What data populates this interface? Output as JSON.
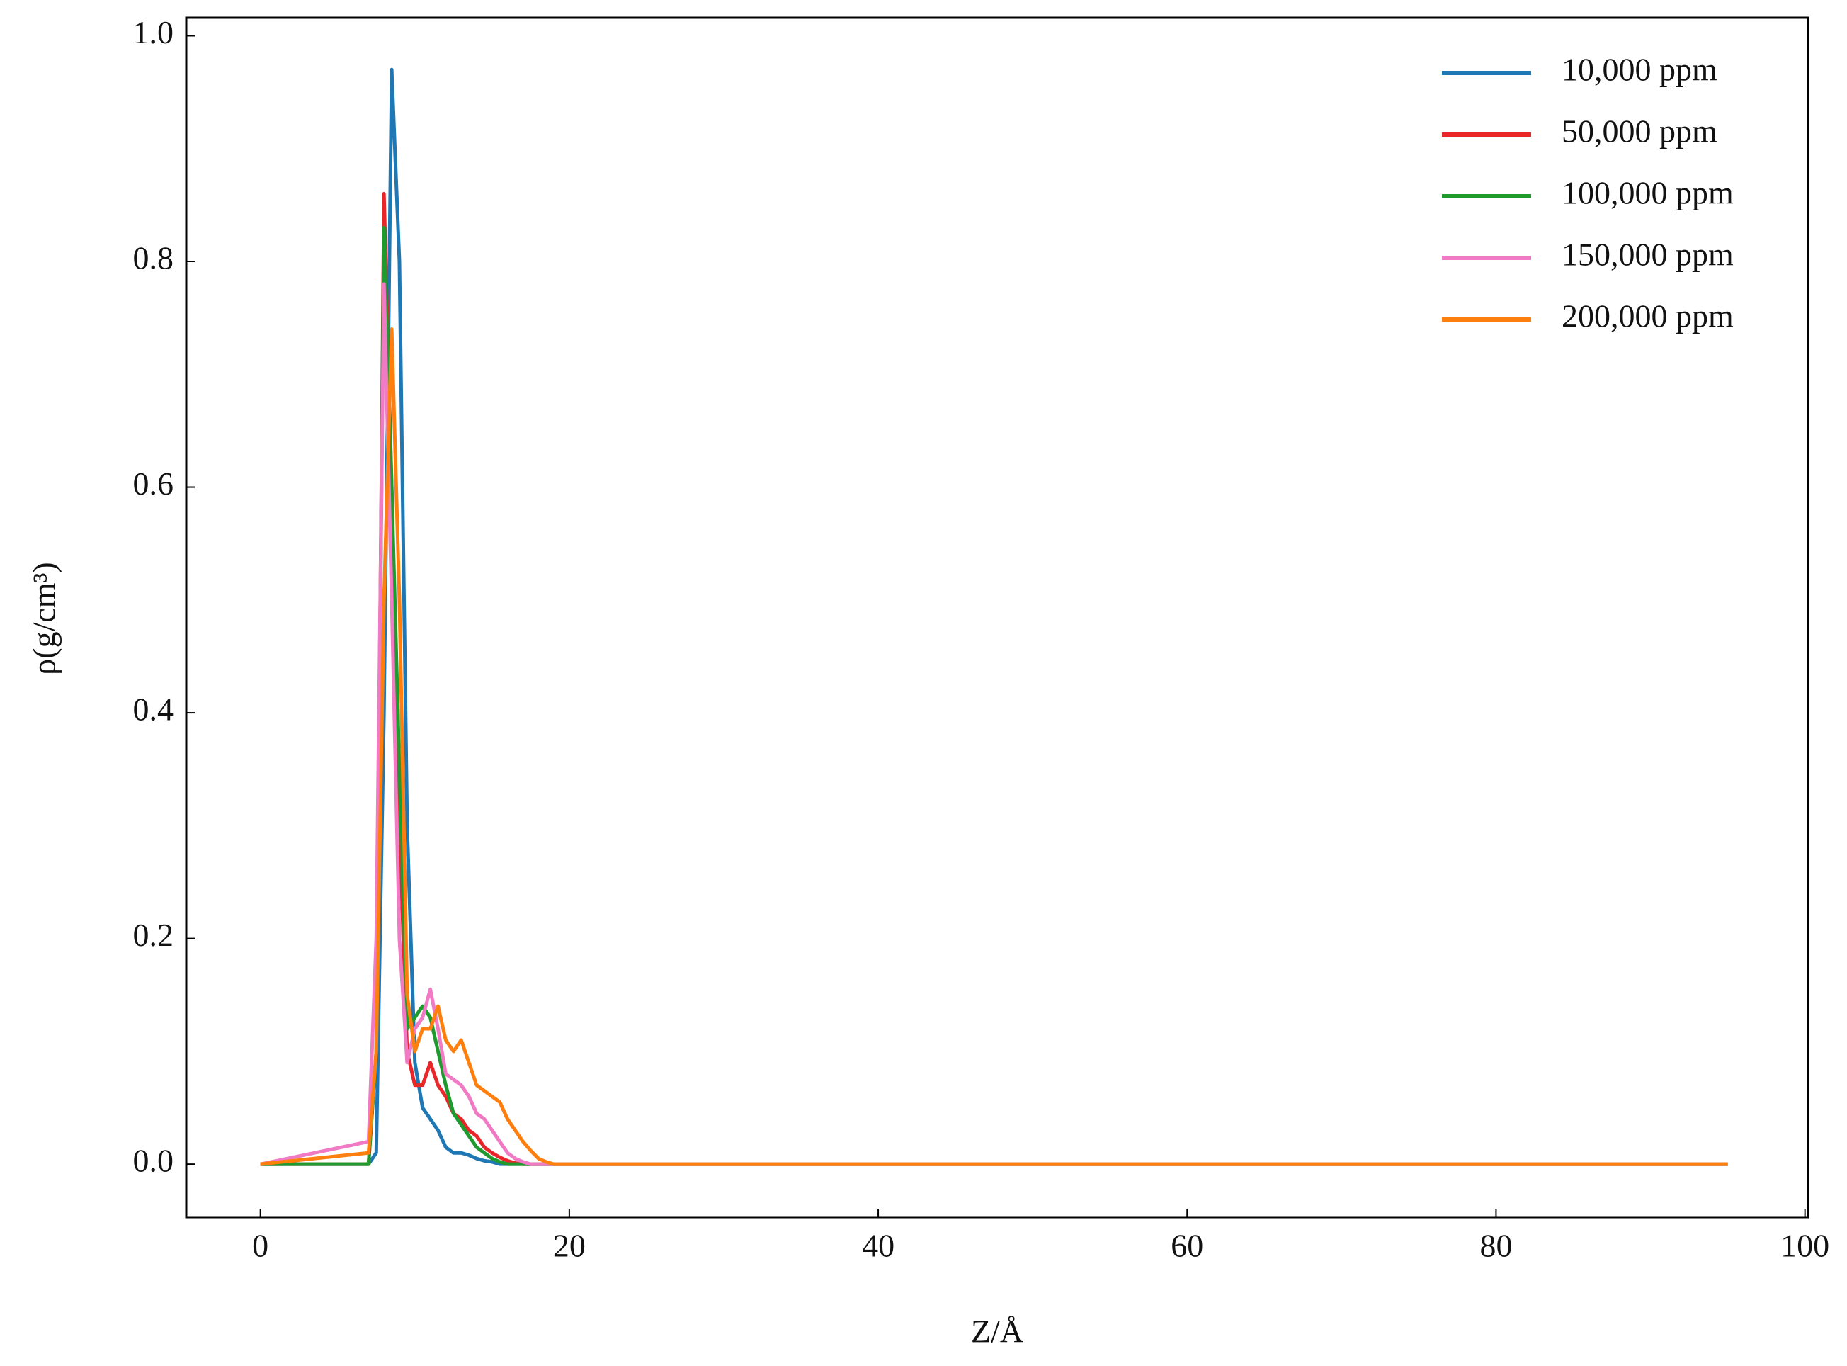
{
  "chart_data": {
    "type": "line",
    "xlabel": "Z/Å",
    "ylabel": "ρ(g/cm³)",
    "x": [
      0,
      7,
      7.5,
      8,
      8.5,
      9,
      9.5,
      10,
      10.5,
      11,
      11.5,
      12,
      12.5,
      13,
      13.5,
      14,
      14.5,
      15,
      15.5,
      16,
      16.5,
      17,
      17.5,
      18,
      18.5,
      19,
      20,
      95
    ],
    "series": [
      {
        "name": "10,000 ppm",
        "color": "#1f77b4",
        "values": [
          0,
          0,
          0.01,
          0.4,
          0.97,
          0.8,
          0.3,
          0.09,
          0.05,
          0.04,
          0.03,
          0.015,
          0.01,
          0.01,
          0.008,
          0.005,
          0.003,
          0.002,
          0,
          0,
          0,
          0,
          0,
          0,
          0,
          0,
          0,
          0
        ]
      },
      {
        "name": "50,000 ppm",
        "color": "#e8262a",
        "values": [
          0,
          0,
          0.1,
          0.86,
          0.6,
          0.3,
          0.1,
          0.07,
          0.07,
          0.09,
          0.07,
          0.06,
          0.045,
          0.04,
          0.03,
          0.025,
          0.015,
          0.01,
          0.006,
          0.003,
          0.001,
          0,
          0,
          0,
          0,
          0,
          0,
          0
        ]
      },
      {
        "name": "100,000 ppm",
        "color": "#1e9a2e",
        "values": [
          0,
          0,
          0.1,
          0.83,
          0.6,
          0.35,
          0.12,
          0.13,
          0.14,
          0.13,
          0.1,
          0.07,
          0.045,
          0.035,
          0.025,
          0.015,
          0.01,
          0.005,
          0.002,
          0,
          0,
          0,
          0,
          0,
          0,
          0,
          0,
          0
        ]
      },
      {
        "name": "150,000 ppm",
        "color": "#f07ac4",
        "values": [
          0,
          0.02,
          0.2,
          0.78,
          0.5,
          0.2,
          0.09,
          0.12,
          0.13,
          0.155,
          0.12,
          0.08,
          0.075,
          0.07,
          0.06,
          0.045,
          0.04,
          0.03,
          0.02,
          0.01,
          0.005,
          0.002,
          0,
          0,
          0,
          0,
          0,
          0
        ]
      },
      {
        "name": "200,000 ppm",
        "color": "#ff7f0e",
        "values": [
          0,
          0.01,
          0.1,
          0.5,
          0.74,
          0.5,
          0.15,
          0.1,
          0.12,
          0.12,
          0.14,
          0.11,
          0.1,
          0.11,
          0.09,
          0.07,
          0.065,
          0.06,
          0.055,
          0.04,
          0.03,
          0.02,
          0.012,
          0.005,
          0.002,
          0,
          0,
          0
        ]
      }
    ],
    "xlim": [
      -4.8,
      100.2
    ],
    "ylim": [
      -0.047,
      1.016
    ],
    "xticks": [
      0,
      20,
      40,
      60,
      80,
      100
    ],
    "yticks": [
      {
        "value": 0,
        "label": "0.0"
      },
      {
        "value": 0.2,
        "label": "0.2"
      },
      {
        "value": 0.4,
        "label": "0.4"
      },
      {
        "value": 0.6,
        "label": "0.6"
      },
      {
        "value": 0.8,
        "label": "0.8"
      },
      {
        "value": 1,
        "label": "1.0"
      }
    ],
    "legend": "upper right",
    "grid": false
  }
}
